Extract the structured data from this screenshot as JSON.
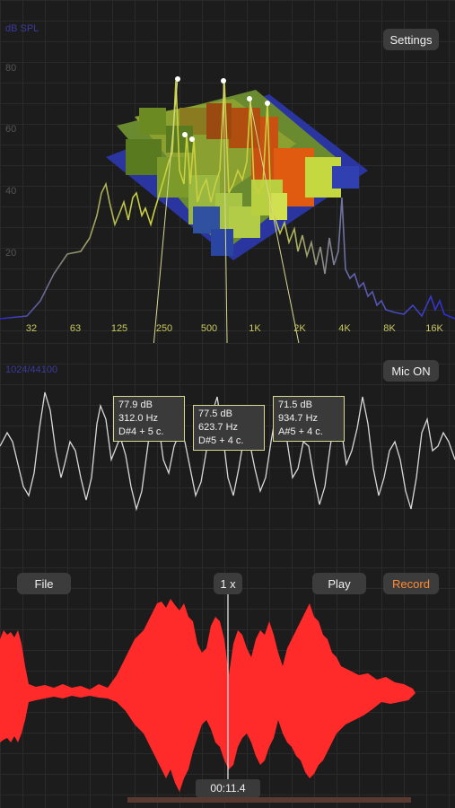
{
  "spectrum": {
    "unit_label": "dB SPL",
    "y_ticks": [
      "80",
      "60",
      "40",
      "20"
    ],
    "x_ticks": [
      "32",
      "63",
      "125",
      "250",
      "500",
      "1K",
      "2K",
      "4K",
      "8K",
      "16K"
    ],
    "settings_label": "Settings"
  },
  "peaks": [
    {
      "db": "77.9 dB",
      "hz": "312.0 Hz",
      "note": "D#4 + 5 c."
    },
    {
      "db": "77.5 dB",
      "hz": "623.7 Hz",
      "note": "D#5 + 4 c."
    },
    {
      "db": "71.5 dB",
      "hz": "934.7 Hz",
      "note": "A#5 + 4 c."
    }
  ],
  "oscilloscope": {
    "sample_label": "1024/44100",
    "mic_label": "Mic  ON"
  },
  "recorder": {
    "file_label": "File",
    "speed_label": "1 x",
    "play_label": "Play",
    "record_label": "Record",
    "time": "00:11.4"
  },
  "colors": {
    "accent_orange": "#ff8a33",
    "waveform_red": "#ff2a2a",
    "spectrum_line": "#c9c860",
    "axis_blue": "#3a3aa0"
  }
}
